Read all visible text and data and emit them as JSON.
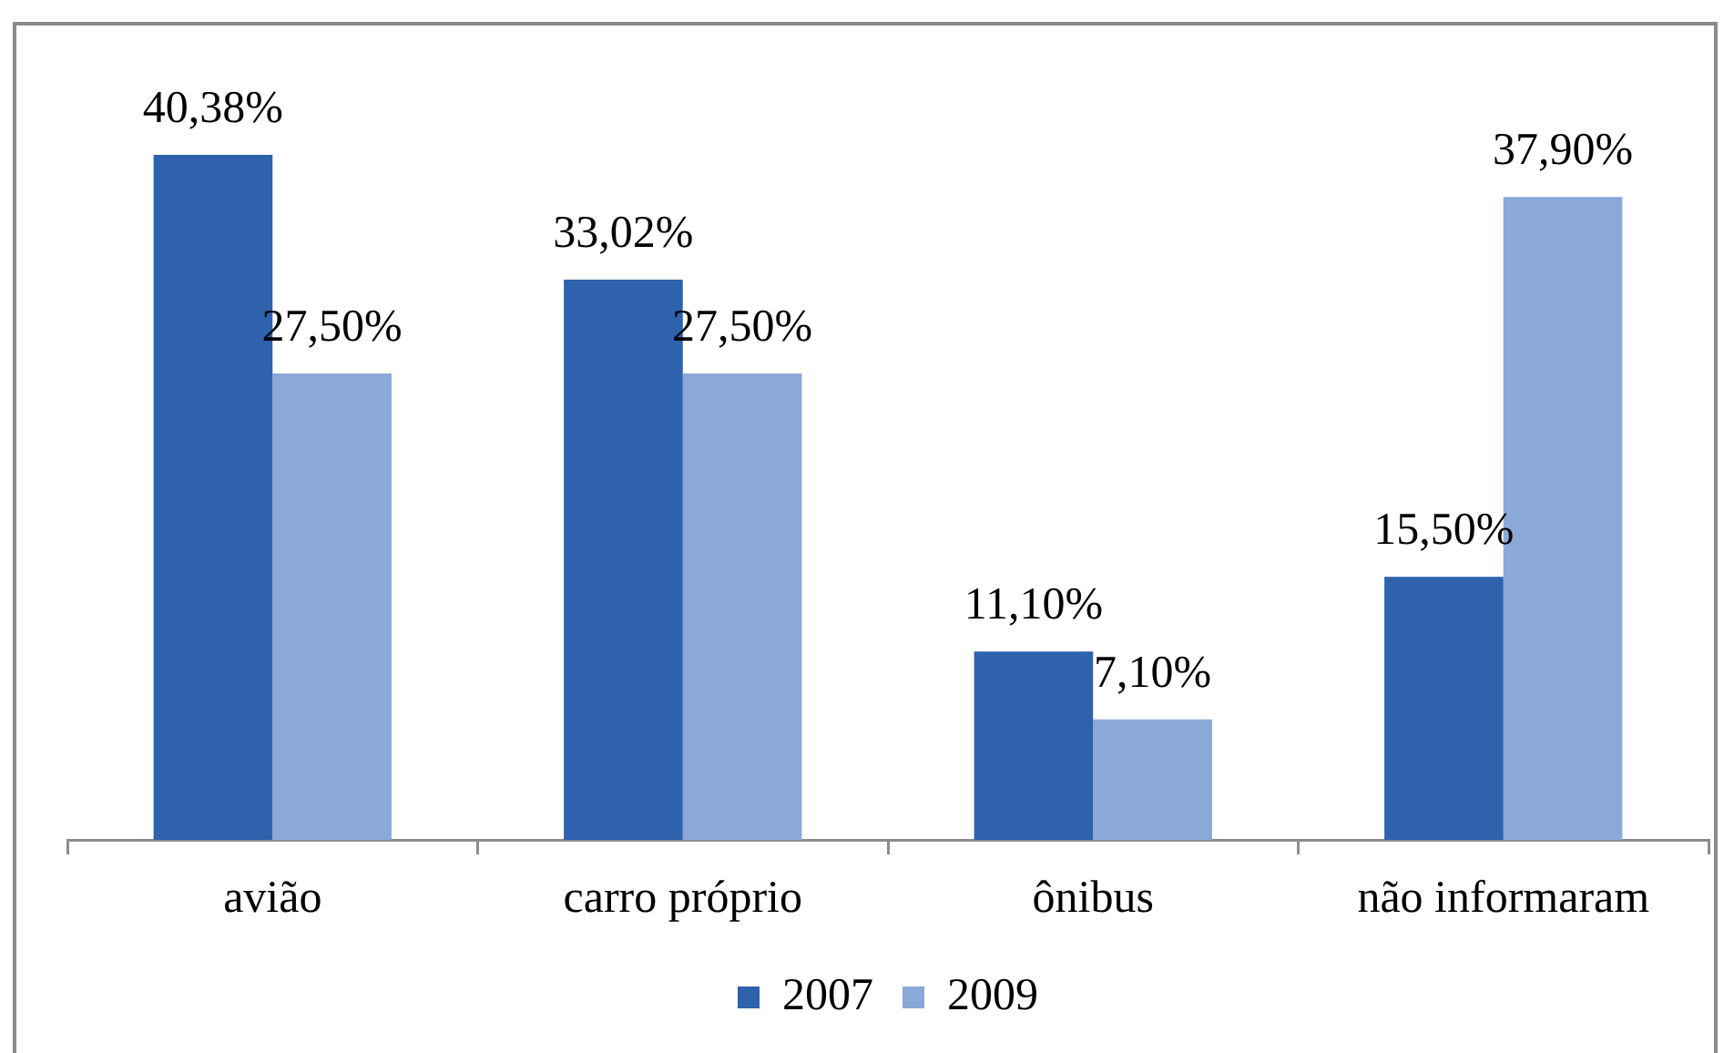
{
  "chart_data": {
    "type": "bar",
    "categories": [
      "avião",
      "carro próprio",
      "ônibus",
      "não informaram"
    ],
    "series": [
      {
        "name": "2007",
        "color": "#2e62ad",
        "values": [
          40.38,
          33.02,
          11.1,
          15.5
        ],
        "value_labels": [
          "40,38%",
          "33,02%",
          "11,10%",
          "15,50%"
        ]
      },
      {
        "name": "2009",
        "color": "#8aa8d8",
        "values": [
          27.5,
          27.5,
          7.1,
          37.9
        ],
        "value_labels": [
          "27,50%",
          "27,50%",
          "7,10%",
          "37,90%"
        ]
      }
    ],
    "legend": "bottom"
  }
}
